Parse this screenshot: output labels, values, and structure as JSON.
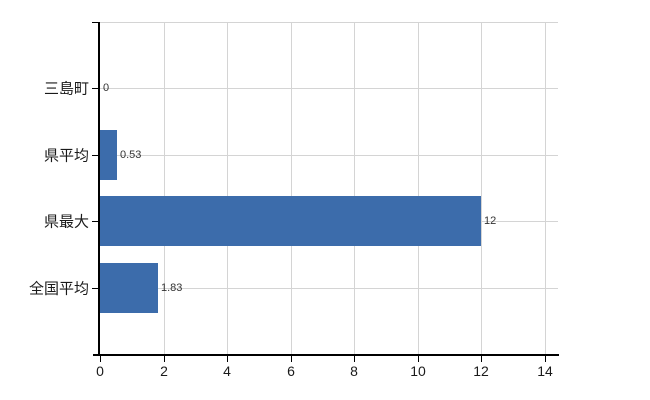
{
  "chart_data": {
    "type": "bar",
    "orientation": "horizontal",
    "title": "",
    "categories": [
      "三島町",
      "県平均",
      "県最大",
      "全国平均"
    ],
    "values": [
      0,
      0.53,
      12,
      1.83
    ],
    "value_labels": [
      "0",
      "0.53",
      "12",
      "1.83"
    ],
    "x_tick_labels": [
      "0",
      "2",
      "4",
      "6",
      "8",
      "10",
      "12",
      "14"
    ],
    "x_tick_values": [
      0,
      2,
      4,
      6,
      8,
      10,
      12,
      14
    ],
    "xlim": [
      0,
      14.44
    ],
    "ylabel": "",
    "xlabel": "",
    "grid": "on",
    "legend": "none",
    "colors": {
      "bar": "#3c6cab",
      "grid": "#d4d4d4",
      "axis": "#000000",
      "category_label": "#1a1a1a",
      "value_label": "#333333",
      "tick_label": "#1a1a1a",
      "background": "#ffffff"
    }
  }
}
